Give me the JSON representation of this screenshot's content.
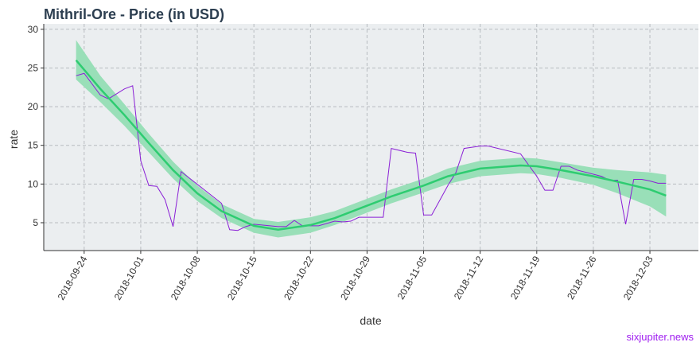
{
  "chart_data": {
    "type": "line",
    "title": "Mithril-Ore - Price (in USD)",
    "x_label": "date",
    "y_label": "rate",
    "source": "sixjupiter.news",
    "xlim": [
      "2018-09-19",
      "2018-12-09"
    ],
    "ylim": [
      1.4,
      30.7
    ],
    "yticks": [
      5,
      10,
      15,
      20,
      25,
      30
    ],
    "xticks": [
      "2018-09-24",
      "2018-10-01",
      "2018-10-08",
      "2018-10-15",
      "2018-10-22",
      "2018-10-29",
      "2018-11-05",
      "2018-11-12",
      "2018-11-19",
      "2018-11-26",
      "2018-12-03"
    ],
    "grid": true,
    "background": "#ebeef0",
    "series": [
      {
        "color": "#8a1fd6",
        "x": [
          "2018-09-23",
          "2018-09-24",
          "2018-09-26",
          "2018-09-27",
          "2018-09-29",
          "2018-09-30",
          "2018-10-01",
          "2018-10-02",
          "2018-10-03",
          "2018-10-04",
          "2018-10-05",
          "2018-10-06",
          "2018-10-11",
          "2018-10-12",
          "2018-10-13",
          "2018-10-14",
          "2018-10-15",
          "2018-10-16",
          "2018-10-18",
          "2018-10-19",
          "2018-10-20",
          "2018-10-21",
          "2018-10-23",
          "2018-10-25",
          "2018-10-26",
          "2018-10-27",
          "2018-10-28",
          "2018-10-31",
          "2018-11-01",
          "2018-11-03",
          "2018-11-04",
          "2018-11-05",
          "2018-11-06",
          "2018-11-08",
          "2018-11-09",
          "2018-11-10",
          "2018-11-12",
          "2018-11-13",
          "2018-11-17",
          "2018-11-19",
          "2018-11-20",
          "2018-11-21",
          "2018-11-22",
          "2018-11-23",
          "2018-11-24",
          "2018-11-27",
          "2018-11-28",
          "2018-11-29",
          "2018-11-30",
          "2018-12-01",
          "2018-12-02",
          "2018-12-03",
          "2018-12-04",
          "2018-12-05"
        ],
        "values": [
          24,
          24.3,
          21.5,
          21,
          22.3,
          22.7,
          13,
          9.8,
          9.7,
          8,
          4.5,
          11.6,
          7.5,
          4.1,
          4,
          4.5,
          4.8,
          4.7,
          4.5,
          4.5,
          5.3,
          4.6,
          4.6,
          5.2,
          5.1,
          5.2,
          5.7,
          5.7,
          14.6,
          14.1,
          14,
          6,
          6,
          9.8,
          11.5,
          14.6,
          14.9,
          14.9,
          13.9,
          11,
          9.2,
          9.2,
          12.3,
          12.3,
          11.8,
          11,
          10.5,
          10.5,
          4.8,
          10.6,
          10.6,
          10.4,
          10.1,
          10.1
        ]
      }
    ],
    "smooth": {
      "color": "#2ecc71",
      "band_color": "#99dfb8",
      "x": [
        "2018-09-23",
        "2018-09-26",
        "2018-09-29",
        "2018-10-02",
        "2018-10-05",
        "2018-10-08",
        "2018-10-11",
        "2018-10-15",
        "2018-10-18",
        "2018-10-22",
        "2018-10-25",
        "2018-10-29",
        "2018-11-01",
        "2018-11-05",
        "2018-11-08",
        "2018-11-12",
        "2018-11-17",
        "2018-11-19",
        "2018-11-22",
        "2018-11-26",
        "2018-11-29",
        "2018-12-03",
        "2018-12-05"
      ],
      "values": [
        26,
        22.3,
        18.9,
        15.3,
        11.8,
        8.8,
        6.5,
        4.6,
        4.1,
        4.7,
        5.6,
        7.2,
        8.4,
        9.8,
        11,
        12,
        12.4,
        12.3,
        11.8,
        11,
        10.3,
        9.3,
        8.5
      ],
      "lower": [
        23.5,
        20.6,
        17.5,
        14.1,
        10.7,
        7.8,
        5.6,
        3.7,
        3.1,
        3.7,
        4.7,
        6.3,
        7.5,
        8.9,
        10,
        11,
        11.4,
        11.3,
        10.8,
        9.9,
        8.8,
        7.1,
        5.8
      ],
      "upper": [
        28.6,
        24,
        20.3,
        16.5,
        12.9,
        9.8,
        7.4,
        5.5,
        5.1,
        5.7,
        6.5,
        8.1,
        9.3,
        10.7,
        12,
        13,
        13.4,
        13.3,
        12.8,
        12.1,
        11.8,
        11.5,
        11.2
      ]
    }
  }
}
